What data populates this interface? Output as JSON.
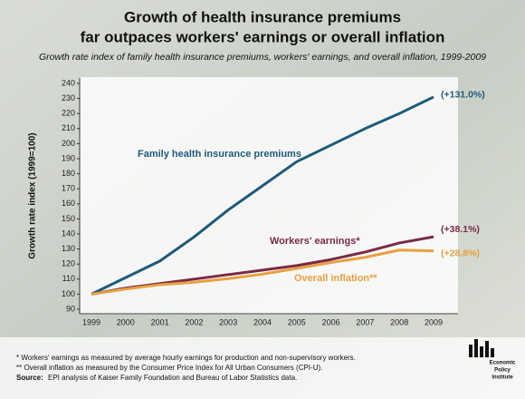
{
  "chart_data": {
    "type": "line",
    "title": [
      "Growth of health insurance premiums",
      "far outpaces workers' earnings or overall inflation"
    ],
    "subtitle": "Growth rate index of family health insurance premiums, workers' earnings, and overall inflation, 1999-2009",
    "y_label": "Growth rate index (1999=100)",
    "categories": [
      "1999",
      "2000",
      "2001",
      "2002",
      "2003",
      "2004",
      "2005",
      "2006",
      "2007",
      "2008",
      "2009"
    ],
    "series": [
      {
        "name": "Family health insurance premiums",
        "color": "#1d5a7a",
        "end_label": "(+131.0%)",
        "values": [
          100,
          111,
          122,
          138,
          156,
          172,
          188,
          199,
          210,
          220,
          231
        ]
      },
      {
        "name": "Workers' earnings*",
        "color": "#7a2a45",
        "end_label": "(+38.1%)",
        "values": [
          100,
          104,
          107,
          110,
          113,
          116,
          119,
          123,
          128,
          134,
          138.1
        ]
      },
      {
        "name": "Overall inflation**",
        "color": "#e8a040",
        "end_label": "(+28.8%)",
        "values": [
          100,
          103.4,
          106.3,
          107.9,
          110.3,
          113.3,
          117.1,
          121,
          124.5,
          129.3,
          128.8
        ]
      }
    ],
    "ylim": [
      90,
      240
    ],
    "yticks": [
      90,
      100,
      110,
      120,
      130,
      140,
      150,
      160,
      170,
      180,
      190,
      200,
      210,
      220,
      230,
      240
    ],
    "grid": false,
    "notes": [
      "* Workers' earnings as measured by average hourly earnings for production and non-supervisory workers.",
      "** Overall inflation as measured by the Consumer Price Index for All Urban Consumers (CPI-U)."
    ],
    "source": {
      "label": "Source:",
      "text": "EPI analysis of Kaiser Family Foundation and Bureau of Labor Statistics data."
    },
    "logo": [
      "Economic",
      "Policy",
      "Institute"
    ]
  }
}
